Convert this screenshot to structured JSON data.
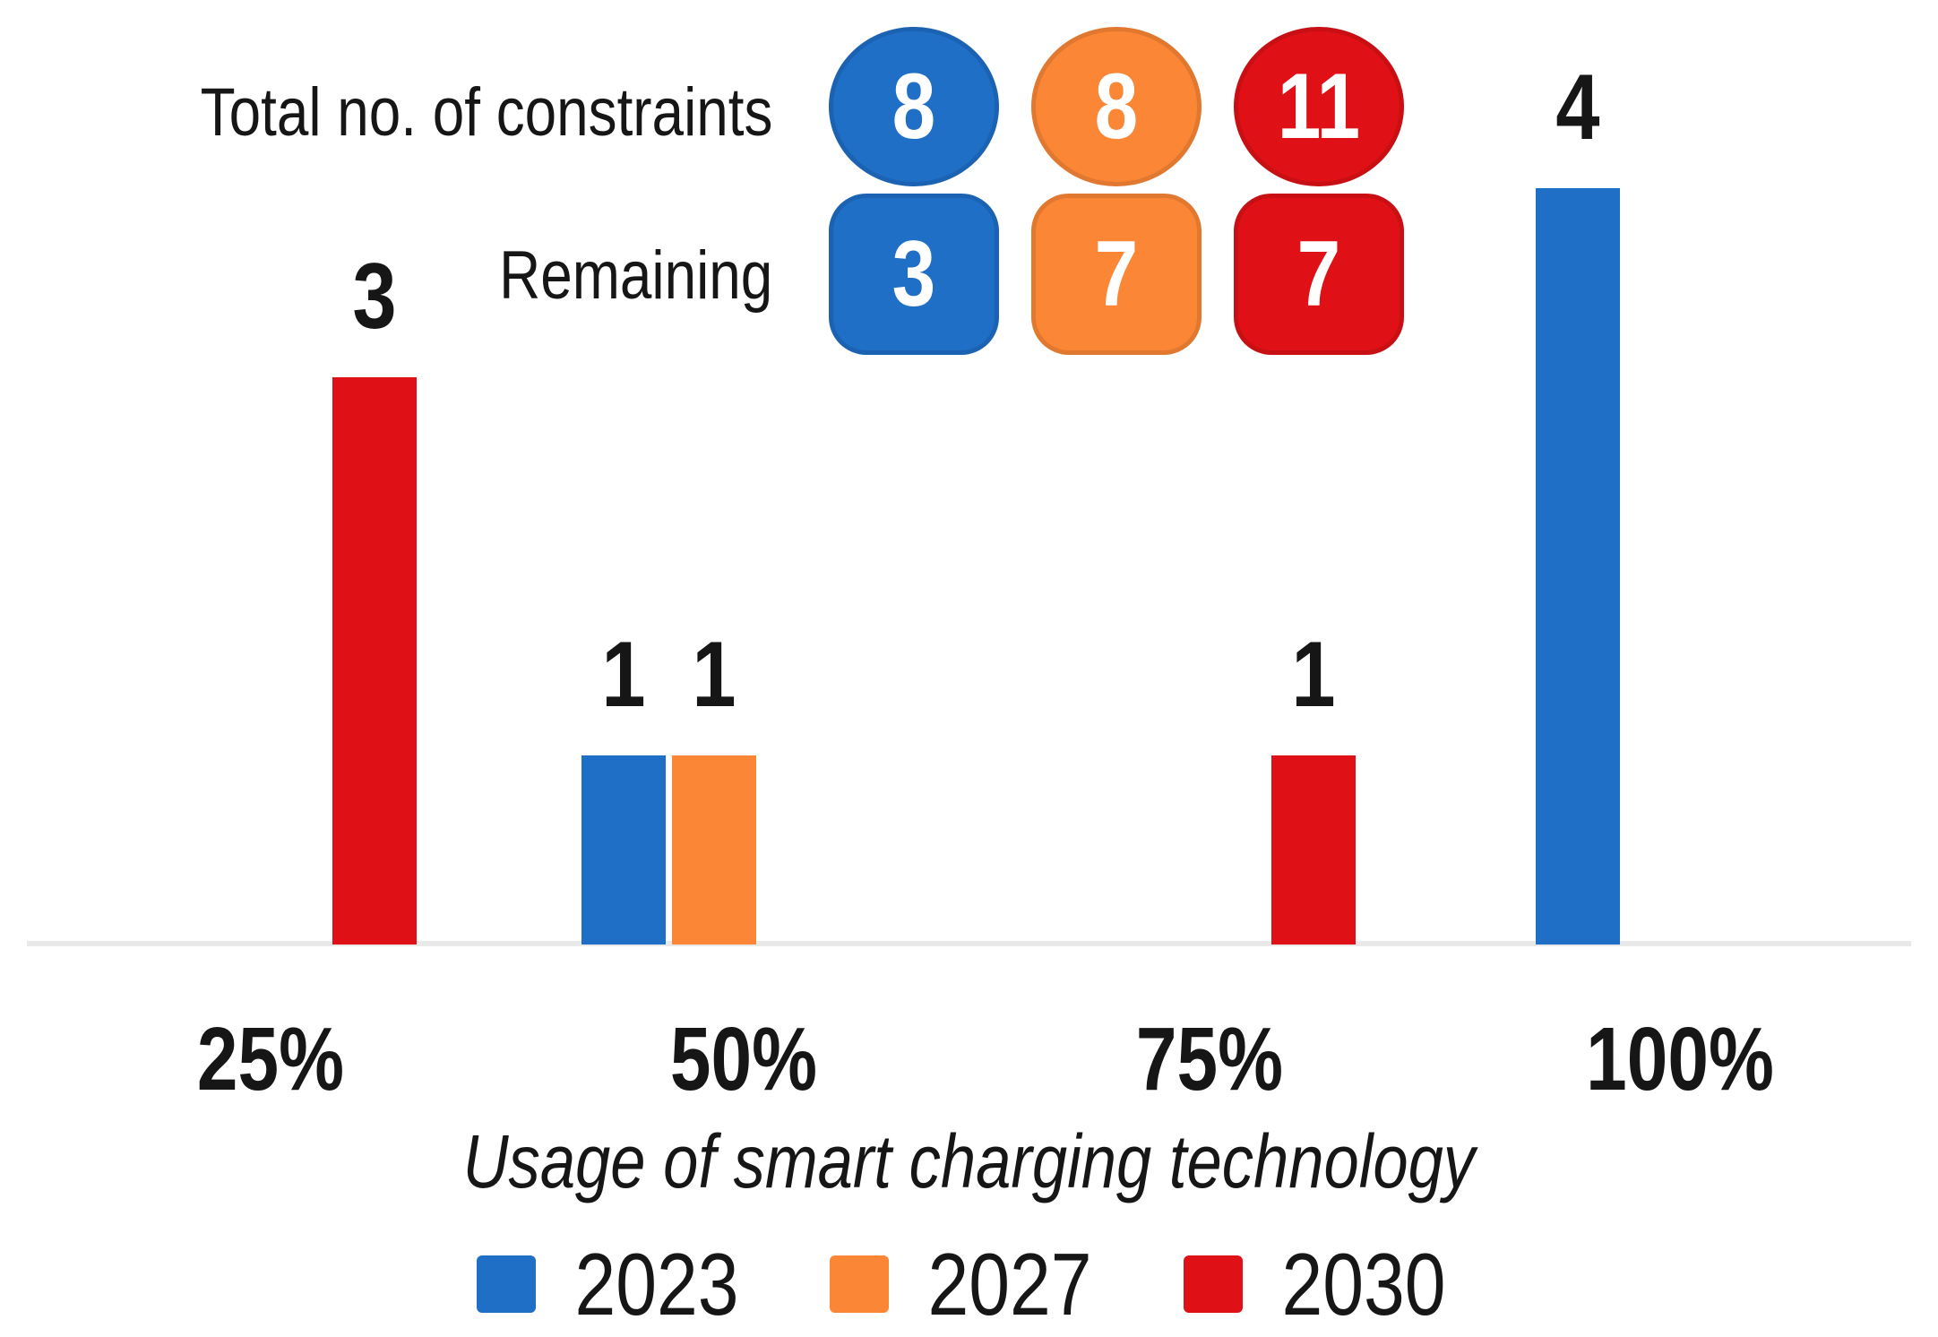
{
  "page": {
    "background": "#FFFFFF",
    "text_color": "#161616",
    "axis_line_color": "#E9E9E9"
  },
  "chart_data": {
    "type": "bar",
    "title": "",
    "xlabel": "Usage of smart charging technology",
    "ylabel": "",
    "categories": [
      "25%",
      "50%",
      "75%",
      "100%"
    ],
    "series": [
      {
        "name": "2023",
        "color": "#1F6FC7",
        "values": [
          0,
          1,
          0,
          4
        ]
      },
      {
        "name": "2027",
        "color": "#FB8636",
        "values": [
          0,
          1,
          0,
          0
        ]
      },
      {
        "name": "2030",
        "color": "#DF1116",
        "values": [
          3,
          0,
          1,
          0
        ]
      }
    ],
    "bar_value_labels_shown": true,
    "ylim": [
      0,
      4.3
    ],
    "grid": false,
    "y_axis_shown": false,
    "legend_position": "bottom",
    "annotation_rows": [
      {
        "label": "Total no. of constraints",
        "shape": "circle",
        "values": [
          8,
          8,
          11
        ],
        "series_order": [
          "2023",
          "2027",
          "2030"
        ]
      },
      {
        "label": "Remaining",
        "shape": "rounded-square",
        "values": [
          3,
          7,
          7
        ],
        "series_order": [
          "2023",
          "2027",
          "2030"
        ]
      }
    ]
  }
}
